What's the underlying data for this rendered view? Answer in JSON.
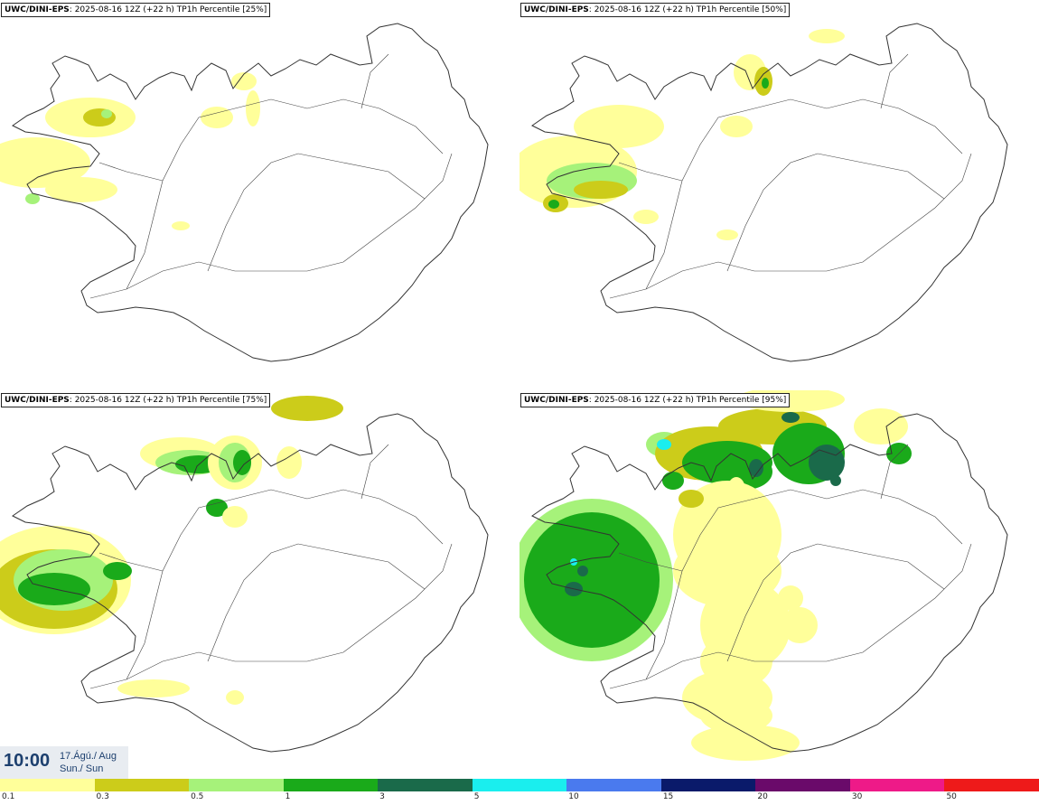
{
  "panels": [
    {
      "model": "UWC/DINI-EPS",
      "info": ": 2025-08-16 12Z (+22 h)",
      "product": "TP1h Percentile",
      "pct": "[25%]"
    },
    {
      "model": "UWC/DINI-EPS",
      "info": ": 2025-08-16 12Z (+22 h)",
      "product": "TP1h Percentile",
      "pct": "[50%]"
    },
    {
      "model": "UWC/DINI-EPS",
      "info": ": 2025-08-16 12Z (+22 h)",
      "product": "TP1h Percentile",
      "pct": "[75%]"
    },
    {
      "model": "UWC/DINI-EPS",
      "info": ": 2025-08-16 12Z (+22 h)",
      "product": "TP1h Percentile",
      "pct": "[95%]"
    }
  ],
  "valid_time": {
    "time": "10:00",
    "date_line1": "17.Ágú./ Aug",
    "date_line2": "Sun./ Sun"
  },
  "legend": {
    "colors": [
      "#ffff9a",
      "#cccc1a",
      "#a6f27a",
      "#1aaa1a",
      "#1a6a4a",
      "#1aeeee",
      "#4a7aee",
      "#0a1a6a",
      "#6a0a6a",
      "#ee1a88",
      "#ee1a1a"
    ],
    "ticks": [
      "0.1",
      "0.3",
      "0.5",
      "1",
      "3",
      "5",
      "10",
      "15",
      "20",
      "30",
      "50"
    ]
  },
  "colors": {
    "coast": "#333333",
    "roads": "#444444",
    "label_border": "#222222",
    "time_text": "#1c3f6e"
  }
}
